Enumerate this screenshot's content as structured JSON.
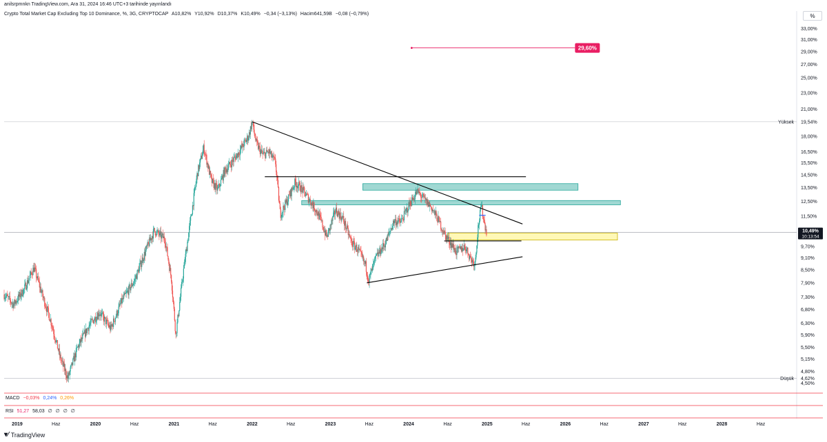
{
  "header": {
    "published": "anilsrpmnkn TradingView.com, Ara 31, 2024 16:46 UTC+3 tarihinde yayınlandı",
    "title": "Crypto Total Market Cap Excluding Top 10 Dominance, %, 3G, CRYPTOCAP",
    "ohlc": [
      "A10,82%",
      "Y10,92%",
      "D10,37%",
      "K10,49%",
      "−0,34 (−3,13%)"
    ],
    "volume": "Hacim641,59B",
    "volume_change": "−0,08 (−0,79%)",
    "scale_button": "%"
  },
  "colors": {
    "up": "#26a69a",
    "down": "#ef5350",
    "trend": "#000000",
    "teal_zone": "#80cbc4",
    "yellow_zone": "#fff59d",
    "price_tag": "#131722",
    "target_tag": "#e91e63",
    "grid_sep": "#f23645"
  },
  "chart_data": {
    "type": "candlestick",
    "title": "Crypto Total Market Cap Excluding Top 10 Dominance",
    "y_scale": "log",
    "ylim": [
      4.3,
      34.5
    ],
    "y_ticks": [
      {
        "v": 33,
        "label": "33,00%"
      },
      {
        "v": 31,
        "label": "31,00%"
      },
      {
        "v": 29,
        "label": "29,00%"
      },
      {
        "v": 27,
        "label": "27,00%"
      },
      {
        "v": 25,
        "label": "25,00%"
      },
      {
        "v": 23,
        "label": "23,00%"
      },
      {
        "v": 21,
        "label": "21,00%"
      },
      {
        "v": 18,
        "label": "18,00%"
      },
      {
        "v": 16.5,
        "label": "16,50%"
      },
      {
        "v": 15.5,
        "label": "15,50%"
      },
      {
        "v": 14.5,
        "label": "14,50%"
      },
      {
        "v": 13.5,
        "label": "13,50%"
      },
      {
        "v": 12.5,
        "label": "12,50%"
      },
      {
        "v": 11.5,
        "label": "11,50%"
      },
      {
        "v": 9.7,
        "label": "9,70%"
      },
      {
        "v": 9.1,
        "label": "9,10%"
      },
      {
        "v": 8.5,
        "label": "8,50%"
      },
      {
        "v": 7.9,
        "label": "7,90%"
      },
      {
        "v": 7.3,
        "label": "7,30%"
      },
      {
        "v": 6.8,
        "label": "6,80%"
      },
      {
        "v": 6.3,
        "label": "6,30%"
      },
      {
        "v": 5.9,
        "label": "5,90%"
      },
      {
        "v": 5.5,
        "label": "5,50%"
      },
      {
        "v": 5.15,
        "label": "5,15%"
      },
      {
        "v": 4.8,
        "label": "4,80%"
      },
      {
        "v": 4.5,
        "label": "4,50%"
      }
    ],
    "x_axis": {
      "range": [
        "2018-11-01",
        "2028-12-15"
      ],
      "ticks": [
        {
          "date": "2019-01-01",
          "label": "2019",
          "major": true
        },
        {
          "date": "2019-07-01",
          "label": "Haz",
          "major": false
        },
        {
          "date": "2020-01-01",
          "label": "2020",
          "major": true
        },
        {
          "date": "2020-07-01",
          "label": "Haz",
          "major": false
        },
        {
          "date": "2021-01-01",
          "label": "2021",
          "major": true
        },
        {
          "date": "2021-07-01",
          "label": "Haz",
          "major": false
        },
        {
          "date": "2022-01-01",
          "label": "2022",
          "major": true
        },
        {
          "date": "2022-07-01",
          "label": "Haz",
          "major": false
        },
        {
          "date": "2023-01-01",
          "label": "2023",
          "major": true
        },
        {
          "date": "2023-07-01",
          "label": "Haz",
          "major": false
        },
        {
          "date": "2024-01-01",
          "label": "2024",
          "major": true
        },
        {
          "date": "2024-07-01",
          "label": "Haz",
          "major": false
        },
        {
          "date": "2025-01-01",
          "label": "2025",
          "major": true
        },
        {
          "date": "2025-07-01",
          "label": "Haz",
          "major": false
        },
        {
          "date": "2026-01-01",
          "label": "2026",
          "major": true
        },
        {
          "date": "2026-07-01",
          "label": "Haz",
          "major": false
        },
        {
          "date": "2027-01-01",
          "label": "2027",
          "major": true
        },
        {
          "date": "2027-07-01",
          "label": "Haz",
          "major": false
        },
        {
          "date": "2028-01-01",
          "label": "2028",
          "major": true
        },
        {
          "date": "2028-07-01",
          "label": "Haz",
          "major": false
        }
      ]
    },
    "price_path": [
      [
        "2018-11-01",
        7.4
      ],
      [
        "2018-12-15",
        7.0
      ],
      [
        "2019-02-01",
        7.6
      ],
      [
        "2019-03-20",
        8.6
      ],
      [
        "2019-05-01",
        7.3
      ],
      [
        "2019-06-10",
        6.3
      ],
      [
        "2019-07-20",
        5.2
      ],
      [
        "2019-08-25",
        4.62
      ],
      [
        "2019-10-10",
        5.5
      ],
      [
        "2019-12-01",
        6.2
      ],
      [
        "2020-01-20",
        6.7
      ],
      [
        "2020-03-12",
        6.1
      ],
      [
        "2020-05-01",
        7.1
      ],
      [
        "2020-07-01",
        8.0
      ],
      [
        "2020-08-20",
        9.4
      ],
      [
        "2020-10-01",
        10.6
      ],
      [
        "2020-11-20",
        10.1
      ],
      [
        "2020-12-20",
        8.1
      ],
      [
        "2021-01-10",
        5.9
      ],
      [
        "2021-02-15",
        8.5
      ],
      [
        "2021-03-20",
        11.3
      ],
      [
        "2021-04-20",
        14.6
      ],
      [
        "2021-05-20",
        16.9
      ],
      [
        "2021-06-25",
        14.0
      ],
      [
        "2021-07-25",
        13.3
      ],
      [
        "2021-08-25",
        14.8
      ],
      [
        "2021-09-25",
        15.5
      ],
      [
        "2021-11-01",
        16.5
      ],
      [
        "2021-12-15",
        18.0
      ],
      [
        "2022-01-01",
        19.54
      ],
      [
        "2022-01-20",
        17.3
      ],
      [
        "2022-02-20",
        16.2
      ],
      [
        "2022-03-20",
        16.5
      ],
      [
        "2022-04-20",
        15.5
      ],
      [
        "2022-05-12",
        11.6
      ],
      [
        "2022-06-15",
        12.6
      ],
      [
        "2022-07-20",
        13.9
      ],
      [
        "2022-08-20",
        13.4
      ],
      [
        "2022-09-25",
        12.6
      ],
      [
        "2022-10-25",
        11.9
      ],
      [
        "2022-11-15",
        11.3
      ],
      [
        "2022-12-15",
        10.2
      ],
      [
        "2023-01-25",
        11.9
      ],
      [
        "2023-03-01",
        11.3
      ],
      [
        "2023-04-10",
        9.9
      ],
      [
        "2023-05-10",
        9.5
      ],
      [
        "2023-06-15",
        8.7
      ],
      [
        "2023-06-28",
        8.0
      ],
      [
        "2023-08-01",
        9.1
      ],
      [
        "2023-09-15",
        9.9
      ],
      [
        "2023-10-25",
        11.2
      ],
      [
        "2023-11-25",
        11.1
      ],
      [
        "2024-01-05",
        12.3
      ],
      [
        "2024-02-10",
        13.2
      ],
      [
        "2024-03-15",
        12.6
      ],
      [
        "2024-04-15",
        12.1
      ],
      [
        "2024-05-20",
        11.2
      ],
      [
        "2024-06-20",
        10.3
      ],
      [
        "2024-07-20",
        9.8
      ],
      [
        "2024-08-10",
        9.4
      ],
      [
        "2024-09-20",
        9.7
      ],
      [
        "2024-10-20",
        9.0
      ],
      [
        "2024-11-05",
        8.8
      ],
      [
        "2024-11-20",
        10.8
      ],
      [
        "2024-12-05",
        12.2
      ],
      [
        "2024-12-20",
        11.0
      ],
      [
        "2024-12-31",
        10.49
      ]
    ],
    "annotations": {
      "high": {
        "label": "Yüksek",
        "value": 19.54,
        "value_label": "19,54%"
      },
      "low": {
        "label": "Düşük",
        "value": 4.62,
        "value_label": "4,62%"
      },
      "current": {
        "value": 10.49,
        "value_label": "10,49%",
        "countdown": "10:13:54"
      },
      "target": {
        "value": 29.6,
        "label": "29,60%",
        "x_from": "2024-01-15",
        "x_to": "2026-02-15"
      },
      "trendlines": [
        {
          "from": [
            "2022-01-01",
            19.54
          ],
          "to": [
            "2025-06-15",
            11.0
          ]
        },
        {
          "from": [
            "2023-06-20",
            7.9
          ],
          "to": [
            "2025-06-15",
            9.15
          ]
        },
        {
          "from": [
            "2022-03-01",
            14.35
          ],
          "to": [
            "2025-07-01",
            14.35
          ]
        },
        {
          "from": [
            "2024-06-15",
            10.0
          ],
          "to": [
            "2025-06-10",
            10.0
          ]
        }
      ],
      "zones": [
        {
          "from": "2023-06-01",
          "to": "2026-03-01",
          "low": 13.3,
          "high": 13.8,
          "kind": "teal"
        },
        {
          "from": "2022-08-20",
          "to": "2026-09-15",
          "low": 12.25,
          "high": 12.55,
          "kind": "teal"
        },
        {
          "from": "2024-07-01",
          "to": "2026-09-01",
          "low": 10.05,
          "high": 10.45,
          "kind": "yellow"
        }
      ],
      "marker": {
        "from": "2024-11-25",
        "to": "2024-12-25",
        "value": 11.55
      }
    }
  },
  "indicators": {
    "macd": {
      "label": "MACD",
      "values": [
        "−0,03%",
        "0,24%",
        "0,26%"
      ],
      "colors": [
        "#f23645",
        "#2962ff",
        "#ff9800"
      ]
    },
    "rsi": {
      "label": "RSI",
      "values": [
        "51,27",
        "58,03",
        "∅",
        "∅",
        "∅",
        "∅"
      ],
      "colors": [
        "#e91e63",
        "#131722",
        "#131722",
        "#131722",
        "#131722",
        "#131722"
      ]
    }
  },
  "footer": {
    "brand": "TradingView",
    "logo_icon": "tradingview-logo-icon"
  }
}
